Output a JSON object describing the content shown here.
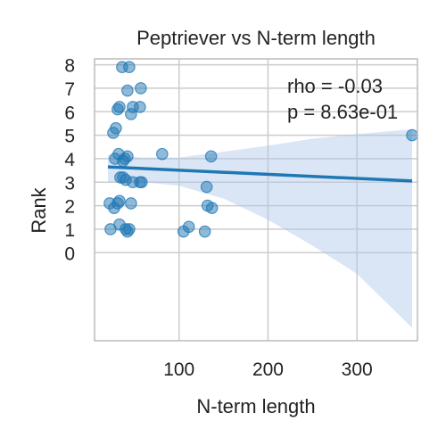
{
  "chart_data": {
    "type": "scatter",
    "title": "Peptriever vs N-term length",
    "xlabel": "N-term length",
    "ylabel": "Rank",
    "xlim": [
      5,
      368
    ],
    "ylim": [
      -3.75,
      8.25
    ],
    "xticks": [
      100,
      200,
      300
    ],
    "yticks": [
      0,
      1,
      2,
      3,
      4,
      5,
      6,
      7,
      8
    ],
    "grid": true,
    "annotations": [
      "rho = -0.03",
      "p = 8.63e-01"
    ],
    "colors": {
      "points": "#1f77b4",
      "fit_line": "#1f77b4",
      "confidence_band": "#aec7e8",
      "grid": "#cccccc",
      "axes": "#bbbbbb"
    },
    "series": [
      {
        "points": [
          {
            "x": 36,
            "y": 7.9
          },
          {
            "x": 44,
            "y": 7.9
          },
          {
            "x": 42,
            "y": 6.9
          },
          {
            "x": 57,
            "y": 7.0
          },
          {
            "x": 31,
            "y": 6.1
          },
          {
            "x": 33,
            "y": 6.2
          },
          {
            "x": 48,
            "y": 6.2
          },
          {
            "x": 56,
            "y": 6.2
          },
          {
            "x": 46,
            "y": 5.9
          },
          {
            "x": 26,
            "y": 5.1
          },
          {
            "x": 29,
            "y": 5.3
          },
          {
            "x": 362,
            "y": 5.0
          },
          {
            "x": 32,
            "y": 4.2
          },
          {
            "x": 28,
            "y": 4.0
          },
          {
            "x": 39,
            "y": 4.0
          },
          {
            "x": 42,
            "y": 4.1
          },
          {
            "x": 37,
            "y": 3.9
          },
          {
            "x": 81,
            "y": 4.2
          },
          {
            "x": 136,
            "y": 4.1
          },
          {
            "x": 34,
            "y": 3.2
          },
          {
            "x": 37,
            "y": 3.2
          },
          {
            "x": 40,
            "y": 3.1
          },
          {
            "x": 48,
            "y": 3.0
          },
          {
            "x": 56,
            "y": 3.0
          },
          {
            "x": 58,
            "y": 3.0
          },
          {
            "x": 131,
            "y": 2.8
          },
          {
            "x": 22,
            "y": 2.1
          },
          {
            "x": 27,
            "y": 1.9
          },
          {
            "x": 31,
            "y": 2.1
          },
          {
            "x": 33,
            "y": 2.2
          },
          {
            "x": 46,
            "y": 2.1
          },
          {
            "x": 132,
            "y": 2.0
          },
          {
            "x": 137,
            "y": 1.9
          },
          {
            "x": 23,
            "y": 1.0
          },
          {
            "x": 33,
            "y": 1.2
          },
          {
            "x": 40,
            "y": 1.0
          },
          {
            "x": 42,
            "y": 0.9
          },
          {
            "x": 44,
            "y": 1.0
          },
          {
            "x": 105,
            "y": 0.9
          },
          {
            "x": 111,
            "y": 1.1
          },
          {
            "x": 129,
            "y": 0.9
          }
        ]
      }
    ],
    "regression": {
      "x": [
        20,
        362
      ],
      "y": [
        3.65,
        3.05
      ]
    },
    "confidence_band": {
      "x": [
        20,
        60,
        100,
        150,
        200,
        250,
        300,
        362
      ],
      "lower": [
        3.0,
        3.0,
        2.85,
        2.3,
        1.4,
        0.3,
        -0.9,
        -3.2
      ],
      "upper": [
        4.15,
        4.05,
        4.05,
        4.3,
        4.55,
        4.85,
        5.05,
        5.25
      ]
    }
  }
}
